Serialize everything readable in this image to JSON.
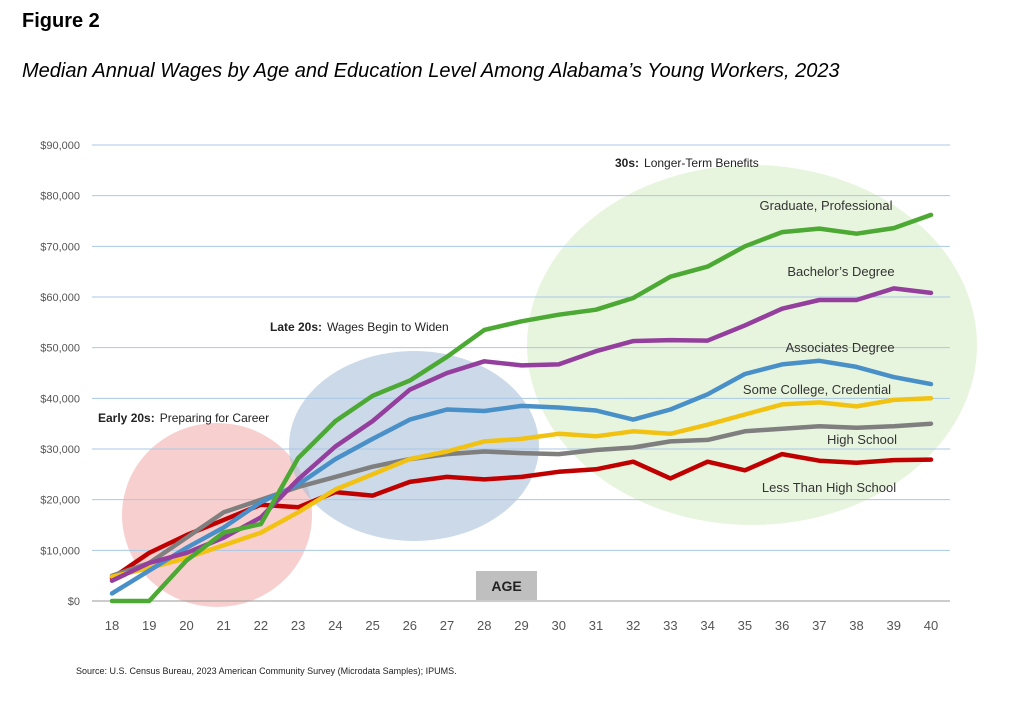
{
  "figure_label": "Figure 2",
  "title": "Median Annual Wages by Age and Education Level Among Alabama’s Young Workers, 2023",
  "source": "Source: U.S. Census Bureau, 2023 American Community Survey (Microdata Samples); IPUMS.",
  "chart_data": {
    "type": "line",
    "xlabel": "AGE",
    "ylabel": "",
    "x": [
      18,
      19,
      20,
      21,
      22,
      23,
      24,
      25,
      26,
      27,
      28,
      29,
      30,
      31,
      32,
      33,
      34,
      35,
      36,
      37,
      38,
      39,
      40
    ],
    "ylim": [
      0,
      90000
    ],
    "yticks": [
      0,
      10000,
      20000,
      30000,
      40000,
      50000,
      60000,
      70000,
      80000,
      90000
    ],
    "ytick_labels": [
      "$0",
      "$10,000",
      "$20,000",
      "$30,000",
      "$40,000",
      "$50,000",
      "$60,000",
      "$70,000",
      "$80,000",
      "$90,000"
    ],
    "grid": true,
    "annotations": [
      {
        "bold": "Early 20s:",
        "text": "Preparing for Career",
        "color": "#f4b6b6",
        "opacity": 0.65
      },
      {
        "bold": "Late 20s:",
        "text": "Wages Begin to Widen",
        "color": "#a9bfd9",
        "opacity": 0.6
      },
      {
        "bold": "30s:",
        "text": "Longer-Term Benefits",
        "color": "#d9efc8",
        "opacity": 0.6
      }
    ],
    "series": [
      {
        "name": "Less Than High School",
        "color": "#c00000",
        "values": [
          4500,
          9500,
          13000,
          16000,
          19000,
          18500,
          21500,
          20800,
          23500,
          24500,
          24000,
          24500,
          25500,
          26000,
          27500,
          24200,
          27500,
          25800,
          29000,
          27700,
          27300,
          27800,
          27900
        ]
      },
      {
        "name": "High School",
        "color": "#7f7f7f",
        "values": [
          5000,
          7500,
          12500,
          17500,
          20000,
          22500,
          24500,
          26500,
          28000,
          29000,
          29500,
          29200,
          29000,
          29800,
          30300,
          31500,
          31800,
          33500,
          34000,
          34500,
          34200,
          34500,
          35000
        ]
      },
      {
        "name": "Some College, Credential",
        "color": "#f2c212",
        "values": [
          4800,
          6500,
          8500,
          11000,
          13500,
          17500,
          22000,
          25000,
          28000,
          29500,
          31500,
          32000,
          33000,
          32500,
          33500,
          33000,
          34800,
          36800,
          38800,
          39200,
          38400,
          39700,
          40000
        ]
      },
      {
        "name": "Associates Degree",
        "color": "#4a90c8",
        "values": [
          1500,
          6000,
          10500,
          14500,
          19500,
          23000,
          28000,
          32000,
          35800,
          37800,
          37500,
          38500,
          38200,
          37600,
          35800,
          37800,
          40800,
          44800,
          46700,
          47400,
          46200,
          44200,
          42800
        ]
      },
      {
        "name": "Bachelor’s Degree",
        "color": "#943f9d",
        "values": [
          4000,
          7500,
          9500,
          12500,
          16500,
          24000,
          30500,
          35500,
          41700,
          45000,
          47300,
          46500,
          46700,
          49300,
          51300,
          51500,
          51400,
          54400,
          57700,
          59400,
          59400,
          61700,
          60800
        ]
      },
      {
        "name": "Graduate, Professional",
        "color": "#4ca933",
        "values": [
          0,
          0,
          8000,
          13500,
          15200,
          28200,
          35500,
          40500,
          43500,
          48200,
          53500,
          55200,
          56500,
          57500,
          59800,
          64000,
          66000,
          70000,
          72800,
          73500,
          72500,
          73600,
          76200
        ]
      }
    ]
  }
}
